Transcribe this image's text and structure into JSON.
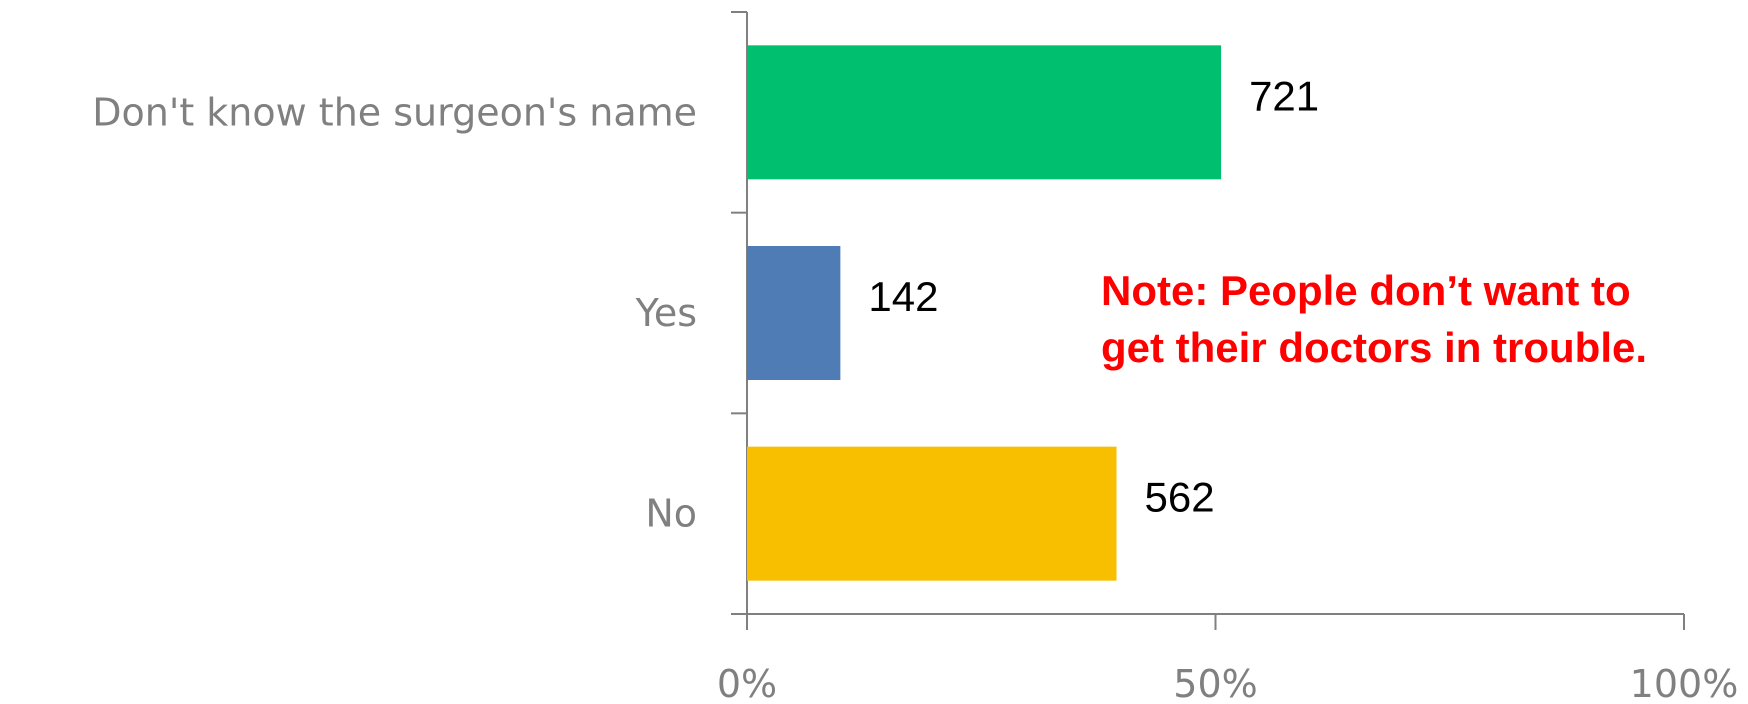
{
  "chart_data": {
    "type": "bar",
    "orientation": "horizontal",
    "stacked": "percent",
    "categories": [
      "Don't know the surgeon's name",
      "Yes",
      "No"
    ],
    "values": [
      721,
      142,
      562
    ],
    "colors": [
      "#00bf6f",
      "#507cb6",
      "#f8be00"
    ],
    "xticks": [
      "0%",
      "50%",
      "100%"
    ],
    "xlim": [
      0,
      1
    ],
    "title": "",
    "xlabel": "",
    "ylabel": "",
    "grid": false
  },
  "annotation": {
    "line1": "Note:  People don’t want to",
    "line2": "get their doctors in trouble.",
    "color": "#ff0000"
  }
}
